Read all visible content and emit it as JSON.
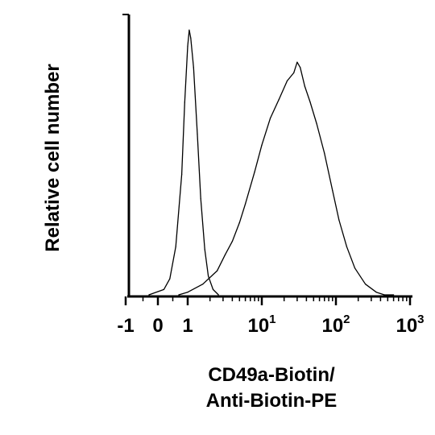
{
  "chart_data": {
    "type": "line",
    "title": "",
    "ylabel": "Relative cell number",
    "xlabel_lines": [
      "CD49a-Biotin/",
      "Anti-Biotin-PE"
    ],
    "x_tick_labels": [
      "-1",
      "0",
      "1",
      "10^1",
      "10^2",
      "10^3"
    ],
    "x_scale": "biexponential (linear near 0, log above 1)",
    "grid": false,
    "legend": "none",
    "series": [
      {
        "role": "control",
        "x": [
          -0.3,
          0.2,
          0.4,
          0.6,
          0.8,
          0.9,
          1.0,
          1.05,
          1.1,
          1.2,
          1.35,
          1.5,
          1.7,
          1.9,
          2.2,
          2.6
        ],
        "y": [
          0.0,
          0.02,
          0.06,
          0.18,
          0.45,
          0.72,
          0.93,
          0.99,
          0.96,
          0.85,
          0.6,
          0.36,
          0.17,
          0.07,
          0.02,
          0.0
        ]
      },
      {
        "role": "stained",
        "x": [
          0.7,
          1.0,
          1.6,
          2.5,
          3.2,
          4.0,
          5.0,
          6.0,
          8.0,
          10.0,
          13.0,
          17.0,
          22.0,
          27.0,
          30.0,
          33.0,
          38.0,
          45.0,
          55.0,
          70.0,
          90.0,
          110.0,
          140.0,
          180.0,
          250.0,
          350.0,
          450.0,
          600.0
        ],
        "y": [
          0.0,
          0.01,
          0.04,
          0.09,
          0.15,
          0.2,
          0.27,
          0.34,
          0.46,
          0.56,
          0.66,
          0.73,
          0.8,
          0.83,
          0.87,
          0.85,
          0.78,
          0.72,
          0.64,
          0.53,
          0.39,
          0.28,
          0.18,
          0.1,
          0.04,
          0.01,
          0.0,
          0.0
        ]
      }
    ]
  }
}
